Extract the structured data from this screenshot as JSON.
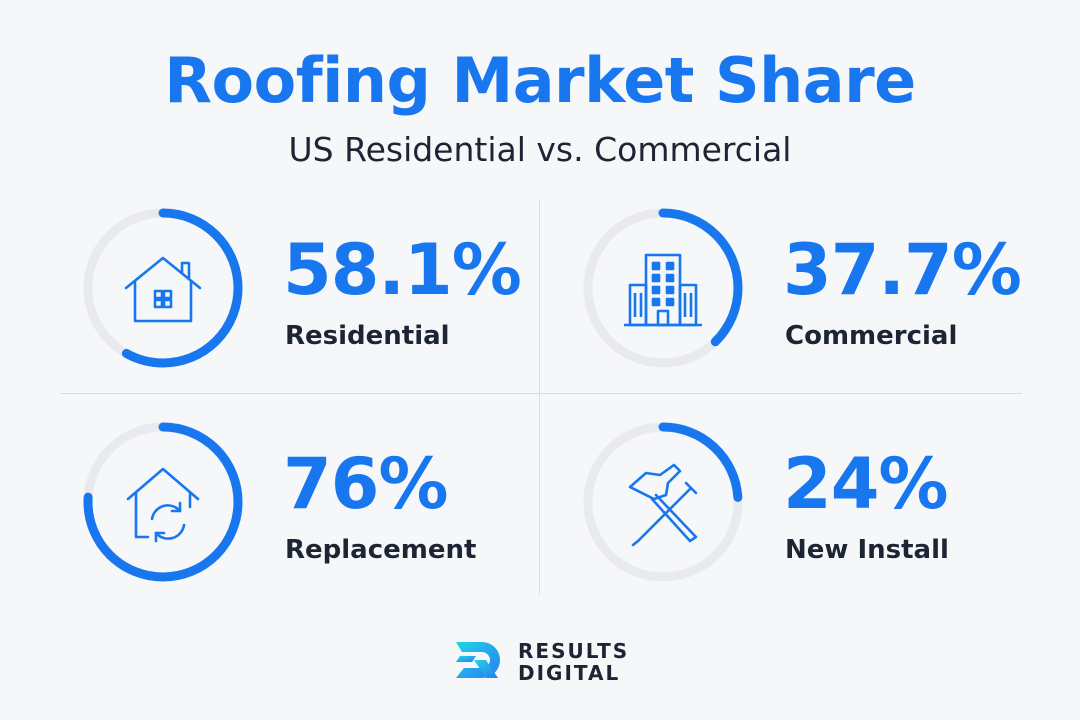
{
  "header": {
    "title": "Roofing Market Share",
    "subtitle": "US Residential vs. Commercial"
  },
  "colors": {
    "accent": "#1877ee",
    "track": "#e8eaef",
    "text": "#1d2433",
    "logo_gradient": [
      "#1fd6e6",
      "#2a7cf2"
    ]
  },
  "chart_data": [
    {
      "type": "pie",
      "value": 58.1,
      "display": "58.1%",
      "label": "Residential",
      "icon": "house-icon"
    },
    {
      "type": "pie",
      "value": 37.7,
      "display": "37.7%",
      "label": "Commercial",
      "icon": "office-building-icon"
    },
    {
      "type": "pie",
      "value": 76,
      "display": "76%",
      "label": "Replacement",
      "icon": "house-refresh-icon"
    },
    {
      "type": "pie",
      "value": 24,
      "display": "24%",
      "label": "New Install",
      "icon": "hammer-nail-icon"
    }
  ],
  "logo": {
    "line1": "RESULTS",
    "line2": "DIGITAL",
    "icon": "results-digital-logo-icon"
  }
}
